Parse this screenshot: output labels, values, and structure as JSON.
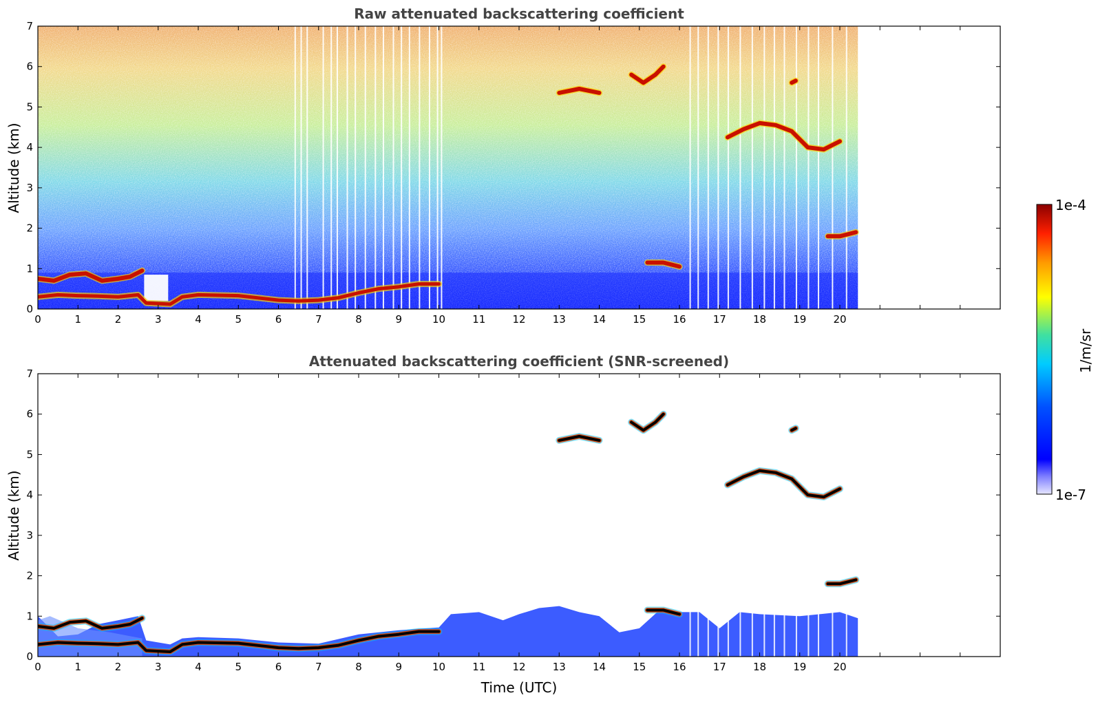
{
  "chart_data": [
    {
      "type": "heatmap",
      "title": "Raw attenuated backscattering coefficient",
      "xlabel": "",
      "ylabel": "Altitude (km)",
      "xlim": [
        0,
        24
      ],
      "ylim": [
        0,
        7
      ],
      "xticks": [
        "0",
        "1",
        "2",
        "3",
        "4",
        "5",
        "6",
        "7",
        "8",
        "9",
        "10",
        "11",
        "12",
        "13",
        "14",
        "15",
        "16",
        "17",
        "18",
        "19",
        "20"
      ],
      "yticks": [
        "0",
        "1",
        "2",
        "3",
        "4",
        "5",
        "6",
        "7"
      ],
      "data_end_time": 20.45,
      "features": [
        {
          "kind": "boundary-layer",
          "x": [
            0,
            0.5,
            1,
            1.5,
            2,
            2.5,
            2.7,
            3.3,
            3.6,
            4,
            5,
            6,
            6.5,
            7,
            7.5,
            8,
            8.5,
            9,
            9.5,
            10
          ],
          "y": [
            0.3,
            0.35,
            0.33,
            0.32,
            0.3,
            0.35,
            0.15,
            0.12,
            0.3,
            0.35,
            0.33,
            0.22,
            0.2,
            0.22,
            0.28,
            0.4,
            0.5,
            0.55,
            0.62,
            0.62
          ]
        },
        {
          "kind": "cloud",
          "x": [
            0,
            0.4,
            0.8,
            1.2,
            1.6,
            2,
            2.3,
            2.6
          ],
          "y": [
            0.75,
            0.7,
            0.85,
            0.88,
            0.7,
            0.75,
            0.8,
            0.95
          ]
        },
        {
          "kind": "cloud",
          "x": [
            13,
            13.5,
            14
          ],
          "y": [
            5.35,
            5.45,
            5.35
          ]
        },
        {
          "kind": "cloud",
          "x": [
            14.8,
            15.1,
            15.4,
            15.6
          ],
          "y": [
            5.8,
            5.6,
            5.8,
            6.0
          ]
        },
        {
          "kind": "cloud",
          "x": [
            15.2,
            15.6,
            16
          ],
          "y": [
            1.15,
            1.15,
            1.05
          ]
        },
        {
          "kind": "cloud",
          "x": [
            17.2,
            17.6,
            18,
            18.4,
            18.8,
            19.2,
            19.6,
            20
          ],
          "y": [
            4.25,
            4.45,
            4.6,
            4.55,
            4.4,
            4.0,
            3.95,
            4.15
          ]
        },
        {
          "kind": "cloud",
          "x": [
            18.8,
            18.9
          ],
          "y": [
            5.6,
            5.65
          ]
        },
        {
          "kind": "cloud",
          "x": [
            19.7,
            20,
            20.4
          ],
          "y": [
            1.8,
            1.8,
            1.9
          ]
        }
      ]
    },
    {
      "type": "heatmap",
      "title": "Attenuated backscattering coefficient (SNR-screened)",
      "xlabel": "Time (UTC)",
      "ylabel": "Altitude (km)",
      "xlim": [
        0,
        24
      ],
      "ylim": [
        0,
        7
      ],
      "xticks": [
        "0",
        "1",
        "2",
        "3",
        "4",
        "5",
        "6",
        "7",
        "8",
        "9",
        "10",
        "11",
        "12",
        "13",
        "14",
        "15",
        "16",
        "17",
        "18",
        "19",
        "20"
      ],
      "yticks": [
        "0",
        "1",
        "2",
        "3",
        "4",
        "5",
        "6",
        "7"
      ],
      "data_end_time": 20.45
    }
  ],
  "colorbar": {
    "label": "1/m/sr",
    "max_label": "1e-4",
    "min_label": "1e-7",
    "colors": [
      "#e6e6ff",
      "#0000ff",
      "#00ccff",
      "#ffff00",
      "#ff6600",
      "#8b0000"
    ],
    "scale": "log"
  }
}
